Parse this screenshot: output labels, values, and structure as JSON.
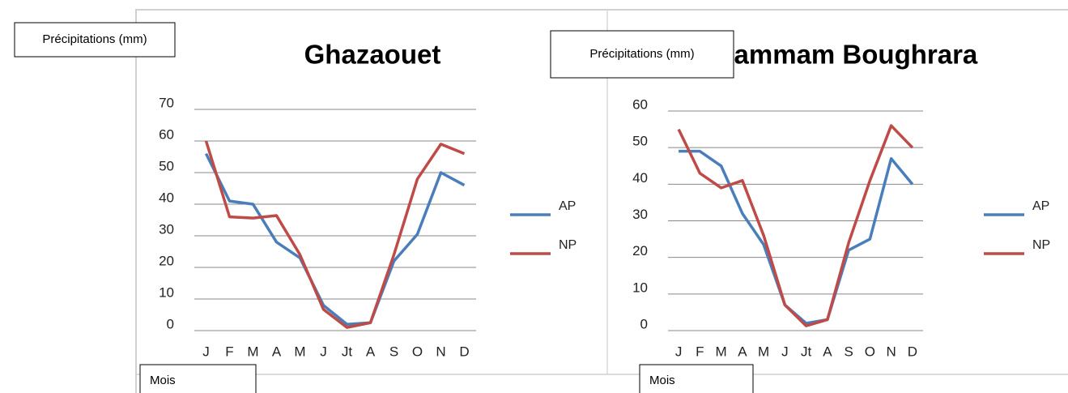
{
  "chart_data": [
    {
      "type": "line",
      "title": "Ghazaouet",
      "y_label": "Précipitations (mm)",
      "x_label": "Mois",
      "categories": [
        "J",
        "F",
        "M",
        "A",
        "M",
        "J",
        "Jt",
        "A",
        "S",
        "O",
        "N",
        "D"
      ],
      "series": [
        {
          "name": "AP",
          "color": "#4a7ebb",
          "values": [
            56,
            41,
            40,
            28,
            23,
            8,
            2,
            2.5,
            22,
            30.5,
            50,
            46
          ]
        },
        {
          "name": "NP",
          "color": "#be4b48",
          "values": [
            60,
            36,
            35.6,
            36.4,
            24,
            6.7,
            1,
            2.5,
            24,
            48,
            59,
            56
          ]
        }
      ],
      "ylim": [
        0,
        70
      ],
      "yticks": [
        0,
        10,
        20,
        30,
        40,
        50,
        60,
        70
      ],
      "grid": true,
      "legend": "right"
    },
    {
      "type": "line",
      "title": "Hammam Boughrara",
      "y_label": "Précipitations (mm)",
      "x_label": "Mois",
      "categories": [
        "J",
        "F",
        "M",
        "A",
        "M",
        "J",
        "Jt",
        "A",
        "S",
        "O",
        "N",
        "D"
      ],
      "series": [
        {
          "name": "AP",
          "color": "#4a7ebb",
          "values": [
            49,
            49,
            45,
            32,
            23.5,
            7,
            2,
            3,
            22,
            25,
            47,
            40
          ]
        },
        {
          "name": "NP",
          "color": "#be4b48",
          "values": [
            55,
            43,
            39,
            41,
            26,
            7,
            1.3,
            3,
            24,
            41,
            56,
            50
          ]
        }
      ],
      "ylim": [
        0,
        60
      ],
      "yticks": [
        0,
        10,
        20,
        30,
        40,
        50,
        60
      ],
      "grid": true,
      "legend": "right"
    }
  ]
}
